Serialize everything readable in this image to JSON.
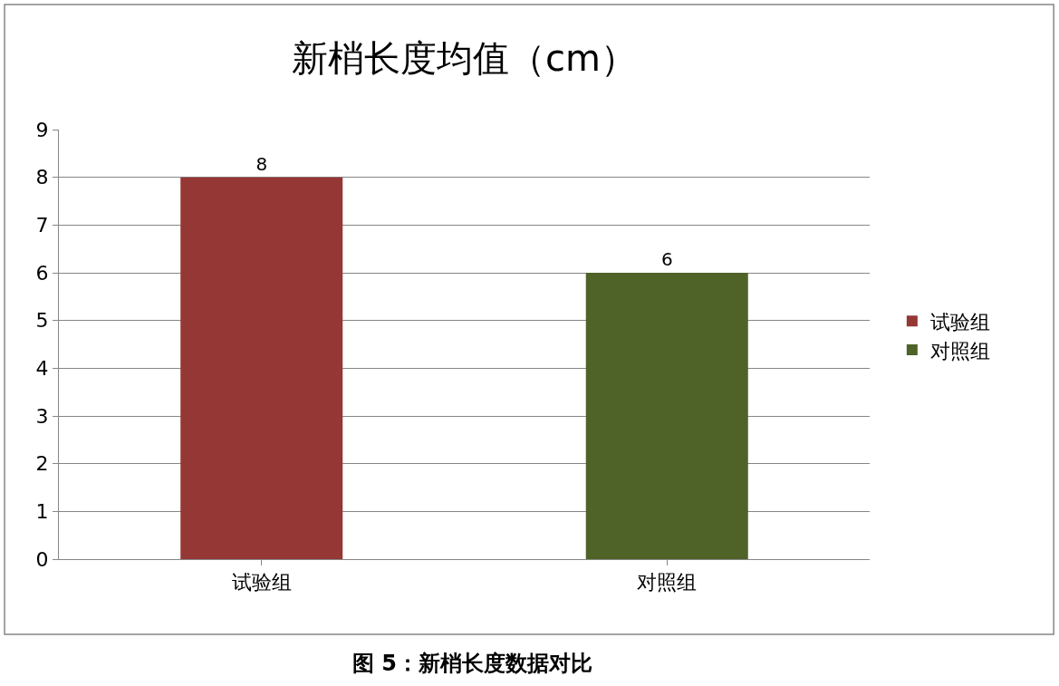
{
  "chart_data": {
    "type": "bar",
    "title": "新梢长度均值（cm）",
    "categories": [
      "试验组",
      "对照组"
    ],
    "series": [
      {
        "name": "试验组",
        "color": "#953735",
        "values": [
          8,
          null
        ]
      },
      {
        "name": "对照组",
        "color": "#4f6228",
        "values": [
          null,
          6
        ]
      }
    ],
    "ylim": [
      0,
      9
    ],
    "yticks": [
      0,
      1,
      2,
      3,
      4,
      5,
      6,
      7,
      8,
      9
    ],
    "grid": "y",
    "legend": "right",
    "data_labels": true,
    "annotations": [
      "图 5：新梢长度数据对比"
    ]
  }
}
